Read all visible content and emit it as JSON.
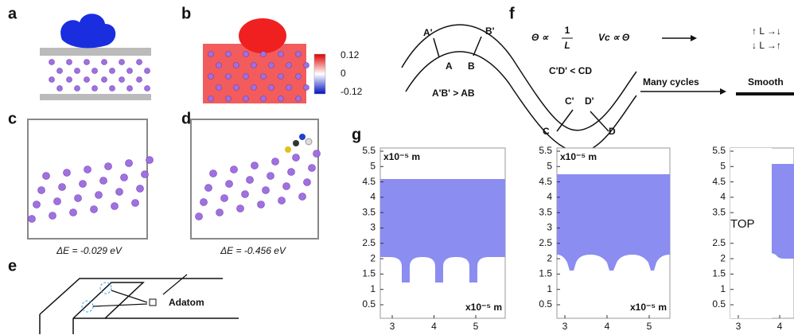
{
  "panel_labels": [
    "a",
    "b",
    "c",
    "d",
    "e",
    "f",
    "g"
  ],
  "colorbar": {
    "ticks": [
      "0.12",
      "0",
      "-0.12"
    ]
  },
  "energies": [
    "ΔE = -0.029 eV",
    "ΔE = -0.456 eV"
  ],
  "adatom": "Adatom",
  "f": {
    "upper_points": [
      "A'",
      "B'"
    ],
    "lower_points": [
      "A",
      "B"
    ],
    "trough_upper": [
      "C'",
      "D'"
    ],
    "trough_lower": [
      "C",
      "D"
    ],
    "relations": [
      "A'B' > AB",
      "C'D' < CD"
    ],
    "theta": "Θ ∝",
    "fraction": [
      "1",
      "L"
    ],
    "velocity": "Vc ∝ Θ",
    "effects": [
      "↑ L →↓",
      "↓ L →↑"
    ],
    "many_cycles": "Many cycles",
    "smooth": "Smooth"
  },
  "g": {
    "plots": [
      {
        "yticks": [
          5.5,
          5,
          4.5,
          4,
          3.5,
          3,
          2.5,
          2,
          1.5,
          1,
          0.5
        ],
        "xticks": [
          3,
          4,
          5
        ],
        "units": [
          "x10⁻⁵ m",
          "x10⁻⁵ m"
        ]
      },
      {
        "yticks": [
          5.5,
          5,
          4.5,
          4,
          3.5,
          3,
          2.5,
          2,
          1.5,
          1,
          0.5
        ],
        "xticks": [
          3,
          4,
          5
        ],
        "units": [
          "x10⁻⁵ m",
          "x10⁻⁵ m"
        ]
      },
      {
        "yticks": [
          5.5,
          5,
          4.5,
          4,
          3.5,
          2.5,
          2,
          1.5,
          1,
          0.5
        ],
        "xticks": [
          3,
          4
        ],
        "units": []
      }
    ],
    "overlay": "TOP"
  }
}
